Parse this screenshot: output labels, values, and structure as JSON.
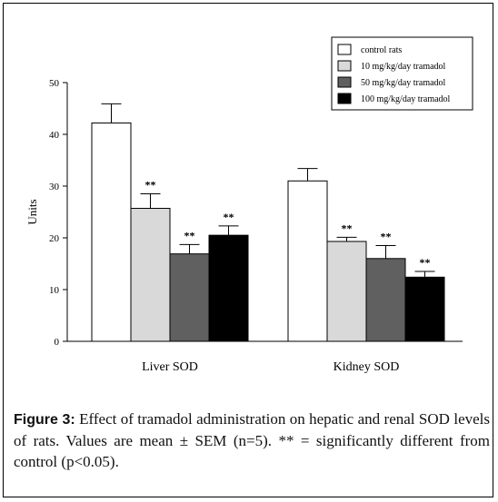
{
  "chart_data": {
    "type": "bar",
    "categories": [
      "Liver SOD",
      "Kidney SOD"
    ],
    "ylabel": "Units",
    "ylim": [
      0,
      50
    ],
    "yticks": [
      0,
      10,
      20,
      30,
      40,
      50
    ],
    "series": [
      {
        "name": "control rats",
        "values": [
          42.2,
          31.0
        ],
        "errors": [
          3.7,
          2.4
        ],
        "color": "#ffffff",
        "marks": [
          "",
          ""
        ]
      },
      {
        "name": "10 mg/kg/day tramadol",
        "values": [
          25.7,
          19.3
        ],
        "errors": [
          2.8,
          0.8
        ],
        "color": "#d9d9d9",
        "marks": [
          "**",
          "**"
        ]
      },
      {
        "name": "50 mg/kg/day tramadol",
        "values": [
          16.9,
          16.0
        ],
        "errors": [
          1.8,
          2.5
        ],
        "color": "#606060",
        "marks": [
          "**",
          "**"
        ]
      },
      {
        "name": "100 mg/kg/day tramadol",
        "values": [
          20.5,
          12.4
        ],
        "errors": [
          1.8,
          1.1
        ],
        "color": "#000000",
        "marks": [
          "**",
          "**"
        ]
      }
    ],
    "legend_position": "top-right"
  },
  "caption": {
    "label": "Figure 3:",
    "text": "Effect of tramadol administration on hepatic and renal SOD levels of rats. Values are mean ± SEM (n=5). ** = significantly different from control (p<0.05)."
  }
}
